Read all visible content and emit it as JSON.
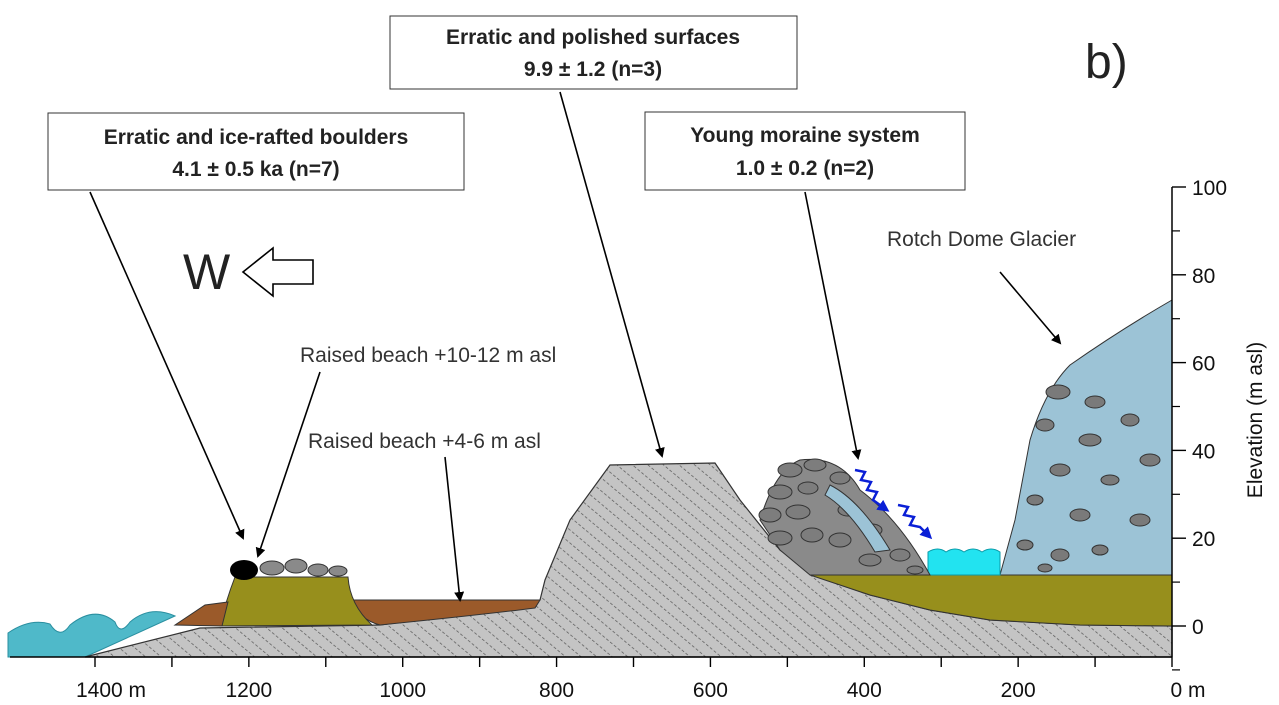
{
  "panel_label": "b)",
  "direction": "W",
  "boxes": [
    {
      "title": "Erratic and ice-rafted boulders",
      "age": "4.1 ± 0.5 ka (n=7)"
    },
    {
      "title": "Erratic and polished surfaces",
      "age": "9.9 ± 1.2 (n=3)"
    },
    {
      "title": "Young moraine system",
      "age": "1.0 ± 0.2 (n=2)"
    }
  ],
  "labels": {
    "glacier": "Rotch Dome Glacier",
    "beach_high": "Raised beach +10-12 m asl",
    "beach_low": "Raised beach +4-6 m asl"
  },
  "x_axis": {
    "ticks": [
      "1400 m",
      "1200",
      "1000",
      "800",
      "600",
      "400",
      "200",
      "0 m"
    ]
  },
  "y_axis": {
    "title": "Elevation (m asl)",
    "ticks": [
      100,
      80,
      60,
      40,
      20,
      0
    ]
  }
}
